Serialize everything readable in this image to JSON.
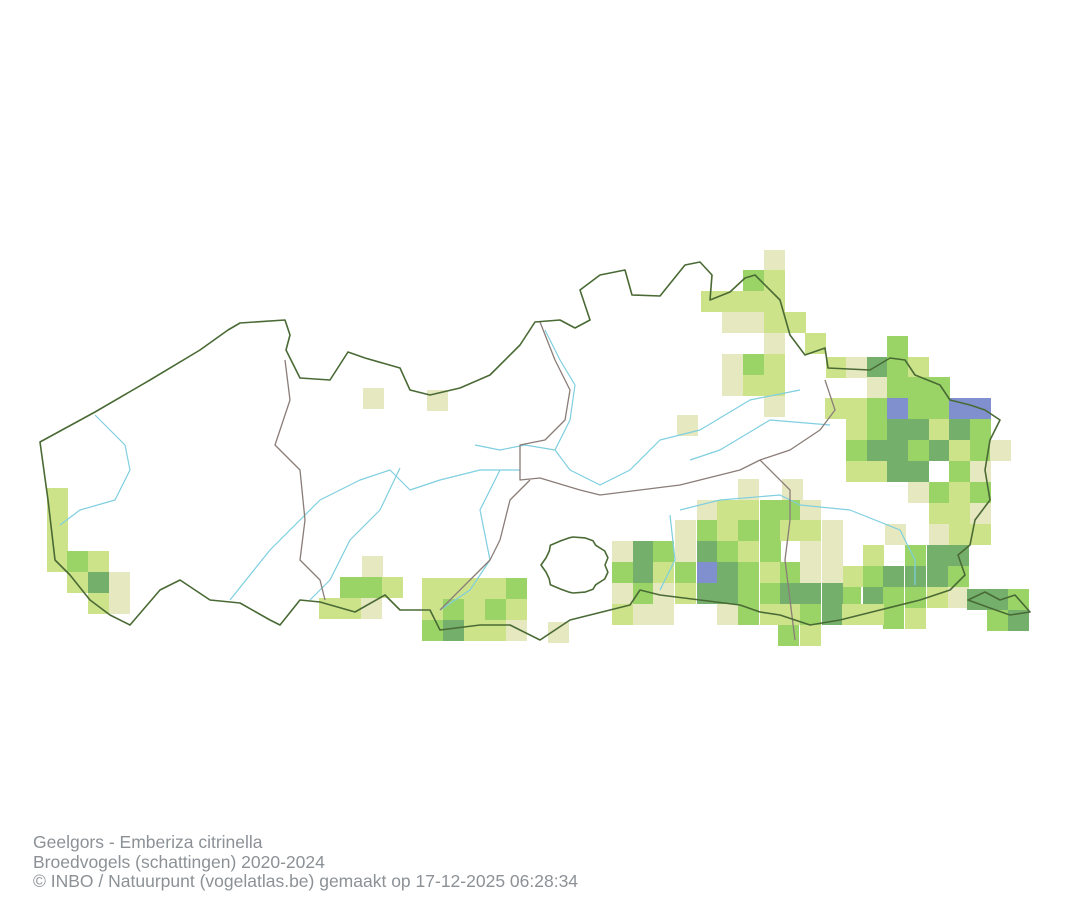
{
  "caption": {
    "species": "Geelgors - Emberiza citrinella",
    "dataset": "Broedvogels (schattingen) 2020-2024",
    "credit": "© INBO / Natuurpunt (vogelatlas.be) gemaakt op 17-12-2025 06:28:34"
  },
  "map": {
    "colors": {
      "class_1": "#e6e8c0",
      "class_2": "#cde38a",
      "class_3": "#9ad466",
      "class_4": "#74b06c",
      "class_5": "#8090cf",
      "region_border": "#4a6a35",
      "province_border": "#8a7d78",
      "river": "#7fcfe0"
    }
  }
}
